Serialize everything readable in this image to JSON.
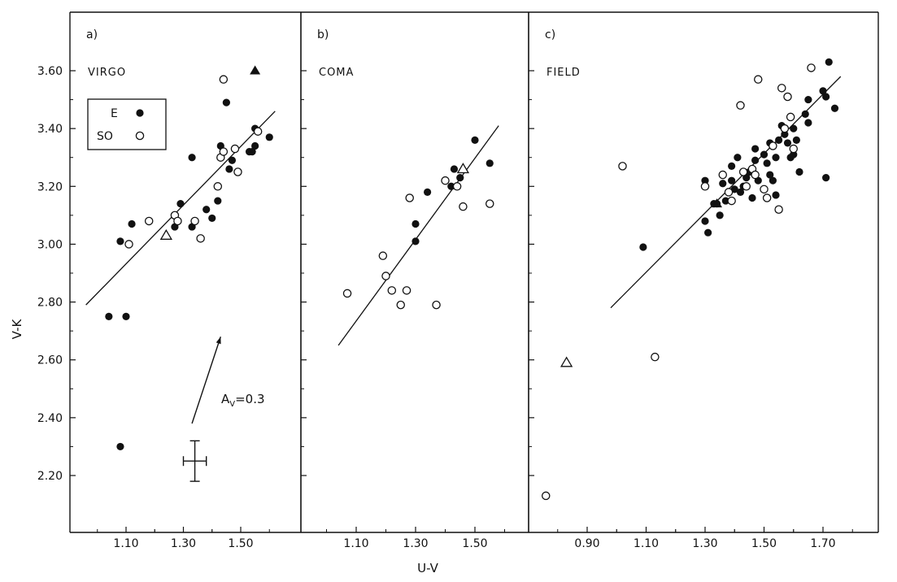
{
  "figure": {
    "ylabel": "V-K",
    "xlabel": "U-V",
    "y_ticks": [
      "3.60",
      "3.40",
      "3.20",
      "3.00",
      "2.80",
      "2.60",
      "2.40",
      "2.20"
    ],
    "legend": {
      "e_label": "E",
      "s0_label": "SO"
    },
    "av_label": "A",
    "av_sub": "V",
    "av_value": "=0.3"
  },
  "chart_data": [
    {
      "type": "scatter",
      "panel_label": "a)",
      "title": "VIRGO",
      "ylim": [
        2.1,
        3.8
      ],
      "xlim": [
        0.95,
        1.67
      ],
      "x_ticks": [
        "1.10",
        "1.30",
        "1.50"
      ],
      "fit_line": [
        [
          0.96,
          2.79
        ],
        [
          1.62,
          3.46
        ]
      ],
      "series": [
        {
          "name": "E",
          "marker": "filled-circle",
          "points": [
            [
              1.04,
              2.75
            ],
            [
              1.08,
              3.01
            ],
            [
              1.1,
              2.75
            ],
            [
              1.08,
              2.3
            ],
            [
              1.12,
              3.07
            ],
            [
              1.29,
              3.14
            ],
            [
              1.27,
              3.06
            ],
            [
              1.33,
              3.3
            ],
            [
              1.33,
              3.06
            ],
            [
              1.38,
              3.12
            ],
            [
              1.4,
              3.09
            ],
            [
              1.42,
              3.15
            ],
            [
              1.43,
              3.34
            ],
            [
              1.45,
              3.49
            ],
            [
              1.46,
              3.26
            ],
            [
              1.47,
              3.29
            ],
            [
              1.53,
              3.32
            ],
            [
              1.54,
              3.32
            ],
            [
              1.55,
              3.4
            ],
            [
              1.55,
              3.34
            ],
            [
              1.6,
              3.37
            ]
          ]
        },
        {
          "name": "SO",
          "marker": "open-circle",
          "points": [
            [
              1.11,
              3.0
            ],
            [
              1.18,
              3.08
            ],
            [
              1.27,
              3.1
            ],
            [
              1.28,
              3.08
            ],
            [
              1.34,
              3.08
            ],
            [
              1.36,
              3.02
            ],
            [
              1.42,
              3.2
            ],
            [
              1.43,
              3.3
            ],
            [
              1.44,
              3.57
            ],
            [
              1.44,
              3.32
            ],
            [
              1.48,
              3.33
            ],
            [
              1.49,
              3.25
            ],
            [
              1.56,
              3.39
            ]
          ]
        },
        {
          "name": "",
          "marker": "open-triangle",
          "points": [
            [
              1.24,
              3.03
            ]
          ]
        },
        {
          "name": "",
          "marker": "filled-triangle",
          "points": [
            [
              1.55,
              3.6
            ]
          ]
        }
      ],
      "reddening_vector": {
        "label": "A_V=0.3",
        "from": [
          1.33,
          2.38
        ],
        "to": [
          1.43,
          2.68
        ]
      },
      "error_bar": {
        "center": [
          1.34,
          2.25
        ],
        "x_err": 0.04,
        "y_err": 0.07
      }
    },
    {
      "type": "scatter",
      "panel_label": "b)",
      "title": "COMA",
      "ylim": [
        2.1,
        3.8
      ],
      "xlim": [
        0.95,
        1.62
      ],
      "x_ticks": [
        "1.10",
        "1.30",
        "1.50"
      ],
      "fit_line": [
        [
          1.04,
          2.65
        ],
        [
          1.58,
          3.41
        ]
      ],
      "series": [
        {
          "name": "E",
          "marker": "filled-circle",
          "points": [
            [
              1.3,
              3.01
            ],
            [
              1.3,
              3.07
            ],
            [
              1.34,
              3.18
            ],
            [
              1.42,
              3.2
            ],
            [
              1.43,
              3.26
            ],
            [
              1.45,
              3.23
            ],
            [
              1.5,
              3.36
            ],
            [
              1.55,
              3.28
            ]
          ]
        },
        {
          "name": "SO",
          "marker": "open-circle",
          "points": [
            [
              1.07,
              2.83
            ],
            [
              1.19,
              2.96
            ],
            [
              1.2,
              2.89
            ],
            [
              1.22,
              2.84
            ],
            [
              1.25,
              2.79
            ],
            [
              1.27,
              2.84
            ],
            [
              1.28,
              3.16
            ],
            [
              1.37,
              2.79
            ],
            [
              1.4,
              3.22
            ],
            [
              1.44,
              3.2
            ],
            [
              1.55,
              3.14
            ],
            [
              1.46,
              3.13
            ]
          ]
        },
        {
          "name": "",
          "marker": "open-triangle",
          "points": [
            [
              1.46,
              3.26
            ]
          ]
        }
      ]
    },
    {
      "type": "scatter",
      "panel_label": "c)",
      "title": "FIELD",
      "ylim": [
        2.1,
        3.8
      ],
      "xlim": [
        0.72,
        1.82
      ],
      "x_ticks": [
        "0.90",
        "1.10",
        "1.30",
        "1.50",
        "1.70"
      ],
      "fit_line": [
        [
          0.98,
          2.78
        ],
        [
          1.76,
          3.58
        ]
      ],
      "series": [
        {
          "name": "E",
          "marker": "filled-circle",
          "points": [
            [
              1.09,
              2.99
            ],
            [
              1.3,
              3.08
            ],
            [
              1.3,
              3.22
            ],
            [
              1.31,
              3.04
            ],
            [
              1.33,
              3.14
            ],
            [
              1.34,
              3.14
            ],
            [
              1.35,
              3.1
            ],
            [
              1.36,
              3.21
            ],
            [
              1.37,
              3.15
            ],
            [
              1.39,
              3.22
            ],
            [
              1.39,
              3.27
            ],
            [
              1.4,
              3.19
            ],
            [
              1.41,
              3.3
            ],
            [
              1.42,
              3.18
            ],
            [
              1.43,
              3.2
            ],
            [
              1.44,
              3.23
            ],
            [
              1.45,
              3.25
            ],
            [
              1.46,
              3.16
            ],
            [
              1.47,
              3.33
            ],
            [
              1.47,
              3.29
            ],
            [
              1.48,
              3.22
            ],
            [
              1.5,
              3.31
            ],
            [
              1.51,
              3.28
            ],
            [
              1.52,
              3.24
            ],
            [
              1.52,
              3.35
            ],
            [
              1.53,
              3.22
            ],
            [
              1.54,
              3.3
            ],
            [
              1.54,
              3.17
            ],
            [
              1.55,
              3.36
            ],
            [
              1.56,
              3.41
            ],
            [
              1.57,
              3.38
            ],
            [
              1.58,
              3.35
            ],
            [
              1.59,
              3.3
            ],
            [
              1.6,
              3.31
            ],
            [
              1.6,
              3.4
            ],
            [
              1.61,
              3.36
            ],
            [
              1.62,
              3.25
            ],
            [
              1.64,
              3.45
            ],
            [
              1.65,
              3.42
            ],
            [
              1.65,
              3.5
            ],
            [
              1.7,
              3.53
            ],
            [
              1.71,
              3.51
            ],
            [
              1.71,
              3.23
            ],
            [
              1.72,
              3.63
            ],
            [
              1.74,
              3.47
            ]
          ]
        },
        {
          "name": "SO",
          "marker": "open-circle",
          "points": [
            [
              0.76,
              2.13
            ],
            [
              1.02,
              3.27
            ],
            [
              1.13,
              2.61
            ],
            [
              1.3,
              3.2
            ],
            [
              1.36,
              3.24
            ],
            [
              1.38,
              3.18
            ],
            [
              1.39,
              3.15
            ],
            [
              1.42,
              3.48
            ],
            [
              1.43,
              3.25
            ],
            [
              1.44,
              3.2
            ],
            [
              1.46,
              3.26
            ],
            [
              1.47,
              3.24
            ],
            [
              1.48,
              3.57
            ],
            [
              1.5,
              3.19
            ],
            [
              1.51,
              3.16
            ],
            [
              1.53,
              3.34
            ],
            [
              1.55,
              3.12
            ],
            [
              1.56,
              3.54
            ],
            [
              1.57,
              3.4
            ],
            [
              1.58,
              3.51
            ],
            [
              1.59,
              3.44
            ],
            [
              1.6,
              3.33
            ],
            [
              1.66,
              3.61
            ]
          ]
        },
        {
          "name": "",
          "marker": "open-triangle",
          "points": [
            [
              0.83,
              2.59
            ]
          ]
        },
        {
          "name": "",
          "marker": "filled-triangle",
          "points": [
            [
              1.34,
              3.14
            ]
          ]
        }
      ]
    }
  ]
}
